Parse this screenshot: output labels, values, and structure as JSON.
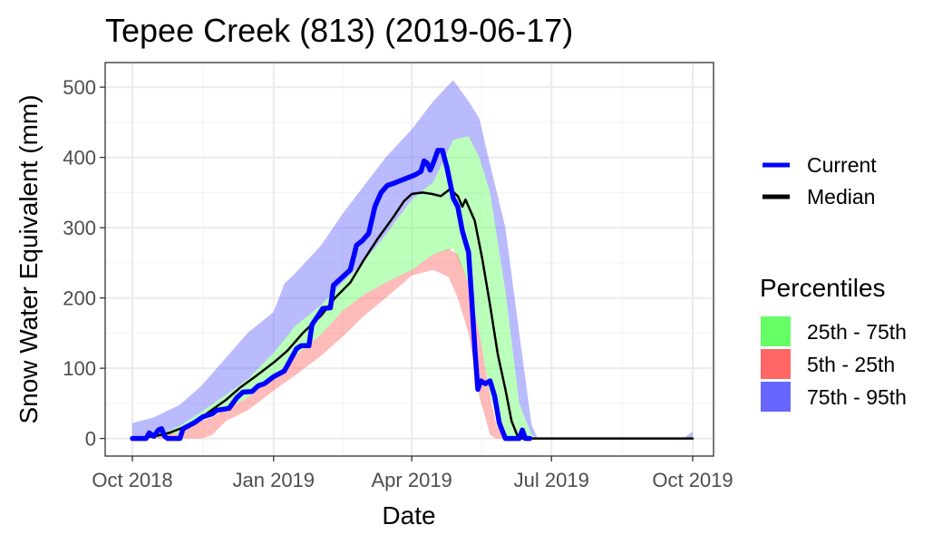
{
  "chart_data": {
    "type": "area",
    "title": "Tepee Creek (813) (2019-06-17)",
    "xlabel": "Date",
    "ylabel": "Snow Water Equivalent (mm)",
    "xlim": [
      "2018-10-01",
      "2019-10-07"
    ],
    "ylim": [
      -25,
      535
    ],
    "x_ticks": [
      {
        "date": "2018-10-01",
        "label": "Oct 2018"
      },
      {
        "date": "2019-01-01",
        "label": "Jan 2019"
      },
      {
        "date": "2019-04-01",
        "label": "Apr 2019"
      },
      {
        "date": "2019-07-01",
        "label": "Jul 2019"
      },
      {
        "date": "2019-10-01",
        "label": "Oct 2019"
      }
    ],
    "y_ticks": [
      0,
      100,
      200,
      300,
      400,
      500
    ],
    "grid": true,
    "legend_position": "right",
    "lines": [
      {
        "name": "Current",
        "color": "#0000ff",
        "points": [
          [
            "2018-10-01",
            0
          ],
          [
            "2018-10-10",
            0
          ],
          [
            "2018-10-12",
            8
          ],
          [
            "2018-10-15",
            3
          ],
          [
            "2018-10-18",
            12
          ],
          [
            "2018-10-20",
            14
          ],
          [
            "2018-10-22",
            3
          ],
          [
            "2018-10-24",
            0
          ],
          [
            "2018-10-29",
            0
          ],
          [
            "2018-11-01",
            0
          ],
          [
            "2018-11-03",
            14
          ],
          [
            "2018-11-10",
            22
          ],
          [
            "2018-11-16",
            31
          ],
          [
            "2018-11-22",
            35
          ],
          [
            "2018-11-25",
            40
          ],
          [
            "2018-12-03",
            43
          ],
          [
            "2018-12-08",
            58
          ],
          [
            "2018-12-12",
            66
          ],
          [
            "2018-12-18",
            67
          ],
          [
            "2018-12-22",
            75
          ],
          [
            "2018-12-26",
            78
          ],
          [
            "2019-01-01",
            88
          ],
          [
            "2019-01-08",
            96
          ],
          [
            "2019-01-12",
            112
          ],
          [
            "2019-01-16",
            128
          ],
          [
            "2019-01-19",
            132
          ],
          [
            "2019-01-24",
            132
          ],
          [
            "2019-01-26",
            162
          ],
          [
            "2019-01-30",
            175
          ],
          [
            "2019-02-02",
            185
          ],
          [
            "2019-02-07",
            186
          ],
          [
            "2019-02-09",
            218
          ],
          [
            "2019-02-14",
            228
          ],
          [
            "2019-02-20",
            240
          ],
          [
            "2019-02-24",
            275
          ],
          [
            "2019-02-28",
            282
          ],
          [
            "2019-03-04",
            292
          ],
          [
            "2019-03-08",
            330
          ],
          [
            "2019-03-12",
            350
          ],
          [
            "2019-03-16",
            360
          ],
          [
            "2019-03-20",
            363
          ],
          [
            "2019-03-28",
            370
          ],
          [
            "2019-04-03",
            375
          ],
          [
            "2019-04-07",
            380
          ],
          [
            "2019-04-09",
            395
          ],
          [
            "2019-04-11",
            392
          ],
          [
            "2019-04-13",
            382
          ],
          [
            "2019-04-15",
            392
          ],
          [
            "2019-04-18",
            410
          ],
          [
            "2019-04-21",
            410
          ],
          [
            "2019-04-24",
            385
          ],
          [
            "2019-04-28",
            342
          ],
          [
            "2019-05-01",
            330
          ],
          [
            "2019-05-04",
            295
          ],
          [
            "2019-05-08",
            265
          ],
          [
            "2019-05-10",
            200
          ],
          [
            "2019-05-12",
            130
          ],
          [
            "2019-05-14",
            70
          ],
          [
            "2019-05-16",
            82
          ],
          [
            "2019-05-19",
            78
          ],
          [
            "2019-05-22",
            82
          ],
          [
            "2019-05-25",
            60
          ],
          [
            "2019-05-28",
            22
          ],
          [
            "2019-06-01",
            0
          ],
          [
            "2019-06-10",
            0
          ],
          [
            "2019-06-12",
            12
          ],
          [
            "2019-06-14",
            0
          ],
          [
            "2019-06-17",
            0
          ]
        ]
      },
      {
        "name": "Median",
        "color": "#000000",
        "points": [
          [
            "2018-10-01",
            0
          ],
          [
            "2018-10-15",
            3
          ],
          [
            "2018-10-25",
            8
          ],
          [
            "2018-11-01",
            14
          ],
          [
            "2018-11-10",
            22
          ],
          [
            "2018-11-20",
            38
          ],
          [
            "2018-12-01",
            55
          ],
          [
            "2018-12-10",
            72
          ],
          [
            "2018-12-20",
            88
          ],
          [
            "2019-01-01",
            108
          ],
          [
            "2019-01-10",
            125
          ],
          [
            "2019-01-20",
            150
          ],
          [
            "2019-02-01",
            175
          ],
          [
            "2019-02-10",
            200
          ],
          [
            "2019-02-20",
            222
          ],
          [
            "2019-03-01",
            255
          ],
          [
            "2019-03-10",
            285
          ],
          [
            "2019-03-20",
            315
          ],
          [
            "2019-03-27",
            338
          ],
          [
            "2019-04-01",
            348
          ],
          [
            "2019-04-08",
            350
          ],
          [
            "2019-04-14",
            348
          ],
          [
            "2019-04-20",
            345
          ],
          [
            "2019-04-26",
            355
          ],
          [
            "2019-05-01",
            345
          ],
          [
            "2019-05-04",
            330
          ],
          [
            "2019-05-06",
            340
          ],
          [
            "2019-05-12",
            310
          ],
          [
            "2019-05-17",
            255
          ],
          [
            "2019-05-22",
            190
          ],
          [
            "2019-05-27",
            120
          ],
          [
            "2019-06-01",
            70
          ],
          [
            "2019-06-05",
            25
          ],
          [
            "2019-06-09",
            3
          ],
          [
            "2019-06-12",
            0
          ],
          [
            "2019-10-01",
            0
          ]
        ]
      }
    ],
    "bands": [
      {
        "name": "75th - 95th",
        "color": "#6666ff",
        "opacity": 0.45,
        "points": [
          [
            "2018-10-01",
            0,
            22
          ],
          [
            "2018-10-15",
            2,
            30
          ],
          [
            "2018-11-01",
            18,
            48
          ],
          [
            "2018-11-15",
            38,
            75
          ],
          [
            "2018-12-01",
            62,
            115
          ],
          [
            "2018-12-15",
            84,
            150
          ],
          [
            "2019-01-01",
            122,
            180
          ],
          [
            "2019-01-08",
            140,
            220
          ],
          [
            "2019-01-15",
            160,
            235
          ],
          [
            "2019-02-01",
            190,
            275
          ],
          [
            "2019-02-15",
            222,
            320
          ],
          [
            "2019-03-01",
            252,
            360
          ],
          [
            "2019-03-15",
            290,
            400
          ],
          [
            "2019-04-01",
            340,
            440
          ],
          [
            "2019-04-15",
            365,
            480
          ],
          [
            "2019-04-28",
            425,
            510
          ],
          [
            "2019-05-08",
            430,
            480
          ],
          [
            "2019-05-15",
            400,
            455
          ],
          [
            "2019-05-22",
            350,
            390
          ],
          [
            "2019-06-01",
            210,
            300
          ],
          [
            "2019-06-10",
            50,
            150
          ],
          [
            "2019-06-18",
            5,
            20
          ],
          [
            "2019-06-22",
            0,
            0
          ],
          [
            "2019-09-25",
            0,
            0
          ],
          [
            "2019-10-01",
            0,
            10
          ]
        ]
      },
      {
        "name": "25th - 75th",
        "color": "#66ff66",
        "opacity": 0.45,
        "points": [
          [
            "2018-10-01",
            0,
            0
          ],
          [
            "2018-10-15",
            0,
            2
          ],
          [
            "2018-11-01",
            8,
            18
          ],
          [
            "2018-11-15",
            25,
            38
          ],
          [
            "2018-12-01",
            42,
            62
          ],
          [
            "2018-12-15",
            58,
            84
          ],
          [
            "2019-01-01",
            88,
            122
          ],
          [
            "2019-01-15",
            118,
            160
          ],
          [
            "2019-02-01",
            148,
            190
          ],
          [
            "2019-02-15",
            182,
            222
          ],
          [
            "2019-03-01",
            205,
            252
          ],
          [
            "2019-03-15",
            222,
            290
          ],
          [
            "2019-04-01",
            240,
            340
          ],
          [
            "2019-04-15",
            262,
            365
          ],
          [
            "2019-04-28",
            270,
            425
          ],
          [
            "2019-05-08",
            220,
            430
          ],
          [
            "2019-05-15",
            150,
            400
          ],
          [
            "2019-05-22",
            60,
            350
          ],
          [
            "2019-06-01",
            0,
            210
          ],
          [
            "2019-06-10",
            0,
            50
          ],
          [
            "2019-06-18",
            0,
            5
          ],
          [
            "2019-06-22",
            0,
            0
          ]
        ]
      },
      {
        "name": "5th - 25th",
        "color": "#ff6666",
        "opacity": 0.45,
        "points": [
          [
            "2018-10-01",
            0,
            0
          ],
          [
            "2018-11-01",
            0,
            8
          ],
          [
            "2018-11-15",
            0,
            25
          ],
          [
            "2018-11-22",
            5,
            30
          ],
          [
            "2018-12-01",
            25,
            42
          ],
          [
            "2018-12-15",
            40,
            58
          ],
          [
            "2019-01-01",
            68,
            88
          ],
          [
            "2019-01-15",
            90,
            118
          ],
          [
            "2019-02-01",
            118,
            148
          ],
          [
            "2019-02-15",
            145,
            182
          ],
          [
            "2019-03-01",
            175,
            205
          ],
          [
            "2019-03-15",
            200,
            222
          ],
          [
            "2019-04-01",
            232,
            240
          ],
          [
            "2019-04-15",
            240,
            262
          ],
          [
            "2019-04-25",
            230,
            270
          ],
          [
            "2019-05-01",
            200,
            262
          ],
          [
            "2019-05-08",
            150,
            220
          ],
          [
            "2019-05-15",
            60,
            150
          ],
          [
            "2019-05-22",
            5,
            60
          ],
          [
            "2019-05-26",
            0,
            20
          ],
          [
            "2019-06-01",
            0,
            0
          ]
        ]
      }
    ],
    "legend_lines": [
      {
        "label": "Current",
        "color": "#0000ff"
      },
      {
        "label": "Median",
        "color": "#000000"
      }
    ],
    "legend_percentiles_title": "Percentiles",
    "legend_percentiles": [
      {
        "label": "25th - 75th",
        "color": "#66ff66"
      },
      {
        "label": "5th - 25th",
        "color": "#ff6666"
      },
      {
        "label": "75th - 95th",
        "color": "#6666ff"
      }
    ]
  }
}
